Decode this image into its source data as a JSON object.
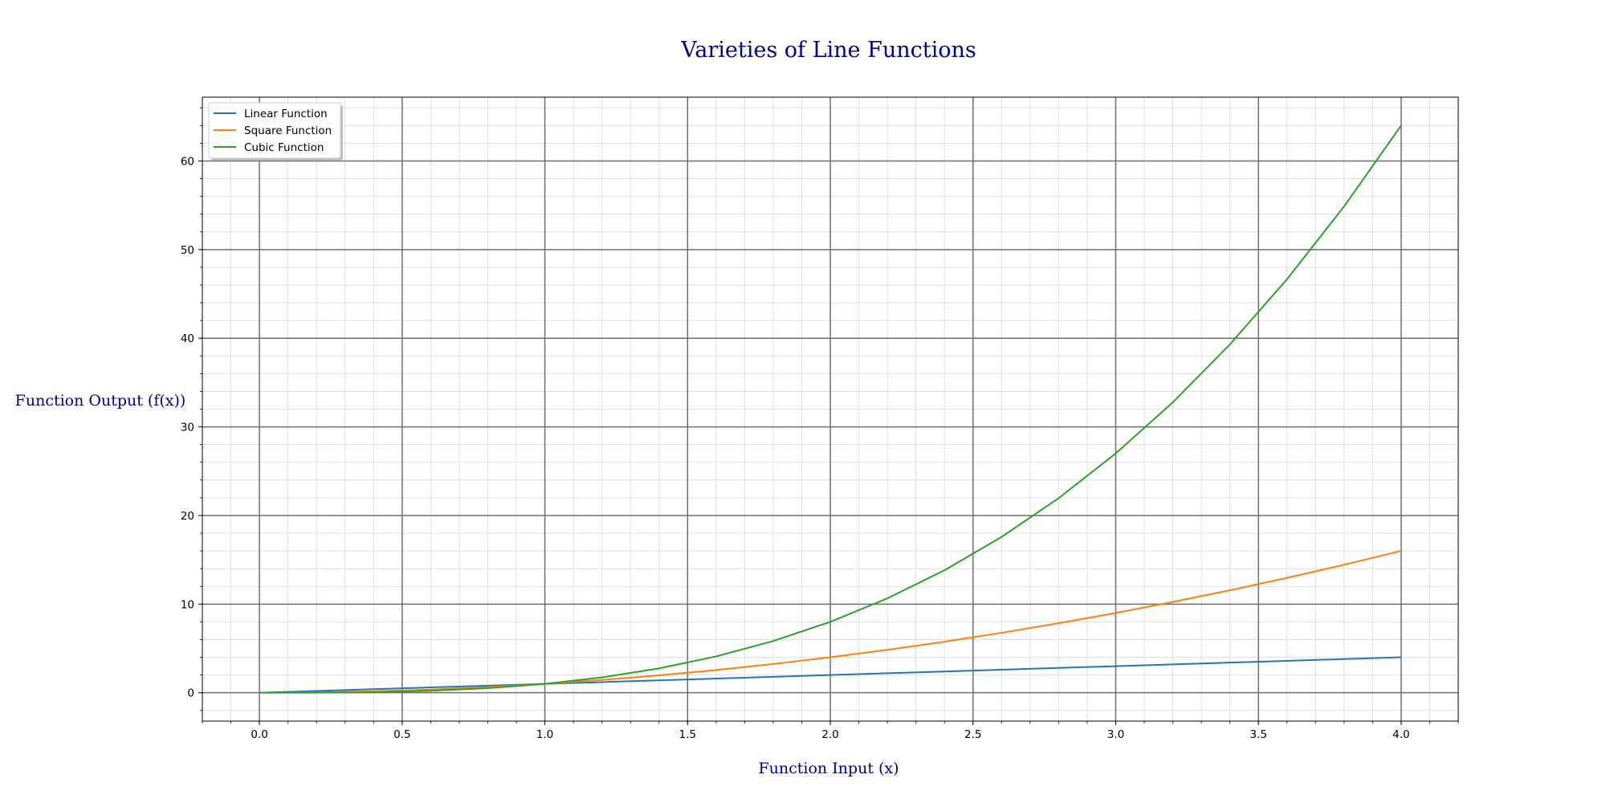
{
  "chart_data": {
    "type": "line",
    "title": "Varieties of Line Functions",
    "xlabel": "Function Input (x)",
    "ylabel": "Function Output (f(x))",
    "xlim": [
      -0.2,
      4.2
    ],
    "ylim": [
      -3.2,
      67.2
    ],
    "x_ticks": [
      0.0,
      0.5,
      1.0,
      1.5,
      2.0,
      2.5,
      3.0,
      3.5,
      4.0
    ],
    "x_tick_labels": [
      "0.0",
      "0.5",
      "1.0",
      "1.5",
      "2.0",
      "2.5",
      "3.0",
      "3.5",
      "4.0"
    ],
    "y_ticks": [
      0,
      10,
      20,
      30,
      40,
      50,
      60
    ],
    "y_tick_labels": [
      "0",
      "10",
      "20",
      "30",
      "40",
      "50",
      "60"
    ],
    "x_minor_step": 0.1,
    "y_minor_step": 2,
    "grid": true,
    "legend_position": "top-left",
    "x": [
      0.0,
      0.2,
      0.4,
      0.6,
      0.8,
      1.0,
      1.2,
      1.4,
      1.6,
      1.8,
      2.0,
      2.2,
      2.4,
      2.6,
      2.8,
      3.0,
      3.2,
      3.4,
      3.6,
      3.8,
      4.0
    ],
    "series": [
      {
        "name": "Linear Function",
        "color": "#1f77b4",
        "values": [
          0.0,
          0.2,
          0.4,
          0.6,
          0.8,
          1.0,
          1.2,
          1.4,
          1.6,
          1.8,
          2.0,
          2.2,
          2.4,
          2.6,
          2.8,
          3.0,
          3.2,
          3.4,
          3.6,
          3.8,
          4.0
        ]
      },
      {
        "name": "Square Function",
        "color": "#ff7f0e",
        "values": [
          0.0,
          0.04,
          0.16,
          0.36,
          0.64,
          1.0,
          1.44,
          1.96,
          2.56,
          3.24,
          4.0,
          4.84,
          5.76,
          6.76,
          7.84,
          9.0,
          10.24,
          11.56,
          12.96,
          14.44,
          16.0
        ]
      },
      {
        "name": "Cubic Function",
        "color": "#2ca02c",
        "values": [
          0.0,
          0.008,
          0.064,
          0.216,
          0.512,
          1.0,
          1.728,
          2.744,
          4.096,
          5.832,
          8.0,
          10.648,
          13.824,
          17.576,
          21.952,
          27.0,
          32.768,
          39.304,
          46.656,
          54.872,
          64.0
        ]
      }
    ]
  }
}
